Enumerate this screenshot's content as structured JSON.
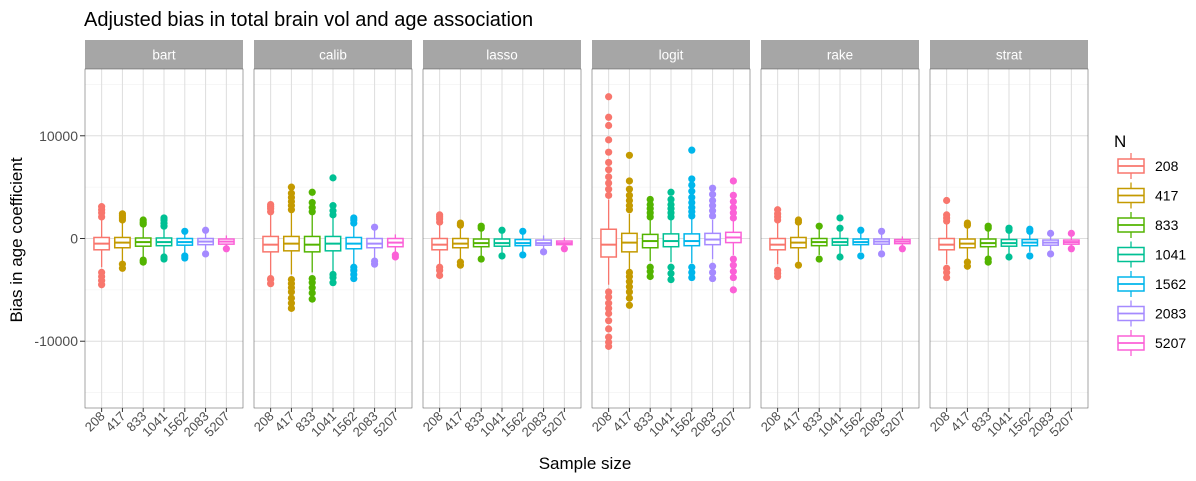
{
  "chart_data": {
    "type": "boxplot",
    "title": "Adjusted bias in total brain vol and age association",
    "xlabel": "Sample size",
    "ylabel": "Bias in age coefficient",
    "ylim": [
      -16500,
      16500
    ],
    "y_ticks": [
      10000,
      0,
      -10000
    ],
    "y_tick_labels": [
      "10000",
      "0",
      "-10000"
    ],
    "grid": true,
    "legend": {
      "title": "N",
      "position": "right",
      "entries": [
        "208",
        "417",
        "833",
        "1041",
        "1562",
        "2083",
        "5207"
      ]
    },
    "categories": [
      "208",
      "417",
      "833",
      "1041",
      "1562",
      "2083",
      "5207"
    ],
    "colors": [
      "#F8766D",
      "#C49A00",
      "#53B400",
      "#00C094",
      "#00B6EB",
      "#A58AFF",
      "#FB61D7"
    ],
    "panels": [
      {
        "name": "bart",
        "boxes": [
          {
            "q1": -1100,
            "median": -500,
            "q3": 100,
            "whisker_low": -2800,
            "whisker_high": 1800,
            "outliers": [
              -4500,
              -4100,
              -3700,
              -3300,
              2100,
              2500,
              2800,
              3100
            ]
          },
          {
            "q1": -900,
            "median": -400,
            "q3": 100,
            "whisker_low": -2200,
            "whisker_high": 1500,
            "outliers": [
              -2500,
              -2900,
              1800,
              2000,
              2200,
              2400
            ]
          },
          {
            "q1": -750,
            "median": -350,
            "q3": 50,
            "whisker_low": -1900,
            "whisker_high": 1200,
            "outliers": [
              -2100,
              -2300,
              1400,
              1600,
              1800
            ]
          },
          {
            "q1": -700,
            "median": -350,
            "q3": 50,
            "whisker_low": -1600,
            "whisker_high": 1000,
            "outliers": [
              -1800,
              -2000,
              1200,
              1500,
              1800,
              2000
            ]
          },
          {
            "q1": -650,
            "median": -350,
            "q3": 0,
            "whisker_low": -1500,
            "whisker_high": 900,
            "outliers": [
              -1700,
              -1900,
              700
            ]
          },
          {
            "q1": -600,
            "median": -300,
            "q3": 0,
            "whisker_low": -1100,
            "whisker_high": 600,
            "outliers": [
              -1500,
              800
            ]
          },
          {
            "q1": -550,
            "median": -300,
            "q3": -50,
            "whisker_low": -900,
            "whisker_high": 300,
            "outliers": [
              -1000
            ]
          }
        ]
      },
      {
        "name": "calib",
        "boxes": [
          {
            "q1": -1300,
            "median": -600,
            "q3": 200,
            "whisker_low": -3600,
            "whisker_high": 2300,
            "outliers": [
              -4400,
              -4000,
              -3900,
              2600,
              2900,
              3100,
              3300
            ]
          },
          {
            "q1": -1200,
            "median": -500,
            "q3": 200,
            "whisker_low": -3500,
            "whisker_high": 2500,
            "outliers": [
              -6800,
              -6300,
              -5800,
              -5200,
              -4800,
              -4400,
              -4000,
              2800,
              3200,
              3600,
              4000,
              4400,
              5000
            ]
          },
          {
            "q1": -1300,
            "median": -600,
            "q3": 200,
            "whisker_low": -3300,
            "whisker_high": 2300,
            "outliers": [
              -5900,
              -5300,
              -4800,
              -4300,
              -3900,
              2600,
              3000,
              3500,
              4500
            ]
          },
          {
            "q1": -1200,
            "median": -500,
            "q3": 200,
            "whisker_low": -3200,
            "whisker_high": 2000,
            "outliers": [
              -4300,
              -3800,
              -3500,
              2300,
              2700,
              3200,
              5900
            ]
          },
          {
            "q1": -1000,
            "median": -500,
            "q3": 100,
            "whisker_low": -2500,
            "whisker_high": 1300,
            "outliers": [
              -3900,
              -3500,
              -3100,
              -2800,
              1500,
              1800,
              2000
            ]
          },
          {
            "q1": -900,
            "median": -500,
            "q3": 0,
            "whisker_low": -1900,
            "whisker_high": 900,
            "outliers": [
              -2500,
              -2200,
              1100
            ]
          },
          {
            "q1": -800,
            "median": -400,
            "q3": 0,
            "whisker_low": -1300,
            "whisker_high": 400,
            "outliers": [
              -1600,
              -1800
            ]
          }
        ]
      },
      {
        "name": "lasso",
        "boxes": [
          {
            "q1": -1100,
            "median": -600,
            "q3": 0,
            "whisker_low": -2500,
            "whisker_high": 1400,
            "outliers": [
              -3600,
              -3100,
              -2800,
              1600,
              1900,
              2100,
              2300
            ]
          },
          {
            "q1": -900,
            "median": -500,
            "q3": 0,
            "whisker_low": -2100,
            "whisker_high": 1100,
            "outliers": [
              -2600,
              -2300,
              1300,
              1500
            ]
          },
          {
            "q1": -800,
            "median": -450,
            "q3": -50,
            "whisker_low": -1700,
            "whisker_high": 800,
            "outliers": [
              -2000,
              1000,
              1200
            ]
          },
          {
            "q1": -750,
            "median": -450,
            "q3": -50,
            "whisker_low": -1500,
            "whisker_high": 600,
            "outliers": [
              -1700,
              800
            ]
          },
          {
            "q1": -700,
            "median": -450,
            "q3": -100,
            "whisker_low": -1300,
            "whisker_high": 500,
            "outliers": [
              -1600,
              700
            ]
          },
          {
            "q1": -650,
            "median": -450,
            "q3": -150,
            "whisker_low": -1100,
            "whisker_high": 300,
            "outliers": [
              -1300
            ]
          },
          {
            "q1": -600,
            "median": -450,
            "q3": -250,
            "whisker_low": -900,
            "whisker_high": 100,
            "outliers": [
              -1000
            ]
          }
        ]
      },
      {
        "name": "logit",
        "boxes": [
          {
            "q1": -1800,
            "median": -600,
            "q3": 900,
            "whisker_low": -4500,
            "whisker_high": 3800,
            "outliers": [
              -10500,
              -10100,
              -9600,
              -8800,
              -8000,
              -7300,
              -6800,
              -6300,
              -5700,
              -5200,
              4200,
              4800,
              5400,
              6000,
              6700,
              7400,
              8400,
              9600,
              11000,
              11800,
              13800
            ]
          },
          {
            "q1": -1300,
            "median": -400,
            "q3": 500,
            "whisker_low": -3000,
            "whisker_high": 2400,
            "outliers": [
              -6500,
              -5800,
              -5200,
              -4700,
              -4200,
              -3700,
              -3300,
              2800,
              3200,
              3700,
              4200,
              4800,
              5600,
              8100
            ]
          },
          {
            "q1": -900,
            "median": -250,
            "q3": 400,
            "whisker_low": -2200,
            "whisker_high": 1800,
            "outliers": [
              -3700,
              -3200,
              -2800,
              2100,
              2500,
              2900,
              3300,
              3800
            ]
          },
          {
            "q1": -800,
            "median": -250,
            "q3": 450,
            "whisker_low": -2300,
            "whisker_high": 1800,
            "outliers": [
              -4000,
              -3400,
              -2800,
              2100,
              2500,
              2900,
              3300,
              3800,
              4500
            ]
          },
          {
            "q1": -700,
            "median": -250,
            "q3": 450,
            "whisker_low": -2400,
            "whisker_high": 1900,
            "outliers": [
              -3800,
              -3300,
              -2800,
              2200,
              2600,
              3000,
              3500,
              4000,
              4600,
              5200,
              5800,
              8600
            ]
          },
          {
            "q1": -600,
            "median": -100,
            "q3": 500,
            "whisker_low": -2000,
            "whisker_high": 1800,
            "outliers": [
              -3900,
              -3300,
              -2700,
              2200,
              2700,
              3200,
              3700,
              4300,
              4900
            ]
          },
          {
            "q1": -400,
            "median": 100,
            "q3": 600,
            "whisker_low": -1600,
            "whisker_high": 1700,
            "outliers": [
              -5000,
              -3800,
              -3200,
              -2600,
              -2000,
              2000,
              2500,
              3000,
              3600,
              4200,
              5600
            ]
          }
        ]
      },
      {
        "name": "rake",
        "boxes": [
          {
            "q1": -1100,
            "median": -600,
            "q3": 0,
            "whisker_low": -2500,
            "whisker_high": 1500,
            "outliers": [
              -3700,
              -3400,
              -3100,
              1800,
              2100,
              2400,
              2800
            ]
          },
          {
            "q1": -900,
            "median": -400,
            "q3": 100,
            "whisker_low": -2400,
            "whisker_high": 1400,
            "outliers": [
              -2600,
              1600,
              1800
            ]
          },
          {
            "q1": -700,
            "median": -350,
            "q3": 0,
            "whisker_low": -1600,
            "whisker_high": 1000,
            "outliers": [
              -2000,
              1200
            ]
          },
          {
            "q1": -650,
            "median": -350,
            "q3": 0,
            "whisker_low": -1500,
            "whisker_high": 800,
            "outliers": [
              -1800,
              1000,
              2000
            ]
          },
          {
            "q1": -600,
            "median": -350,
            "q3": -50,
            "whisker_low": -1300,
            "whisker_high": 600,
            "outliers": [
              -1700,
              800
            ]
          },
          {
            "q1": -550,
            "median": -300,
            "q3": -50,
            "whisker_low": -1100,
            "whisker_high": 400,
            "outliers": [
              -1500,
              700
            ]
          },
          {
            "q1": -500,
            "median": -300,
            "q3": -100,
            "whisker_low": -800,
            "whisker_high": 200,
            "outliers": [
              -1000
            ]
          }
        ]
      },
      {
        "name": "strat",
        "boxes": [
          {
            "q1": -1100,
            "median": -600,
            "q3": 0,
            "whisker_low": -2500,
            "whisker_high": 1400,
            "outliers": [
              -3800,
              -3300,
              -2900,
              1700,
              2000,
              2300,
              3700
            ]
          },
          {
            "q1": -900,
            "median": -500,
            "q3": -50,
            "whisker_low": -2100,
            "whisker_high": 1000,
            "outliers": [
              -2700,
              -2300,
              1300,
              1500
            ]
          },
          {
            "q1": -800,
            "median": -450,
            "q3": -50,
            "whisker_low": -1800,
            "whisker_high": 800,
            "outliers": [
              -2300,
              -2000,
              1000,
              1200
            ]
          },
          {
            "q1": -750,
            "median": -450,
            "q3": -100,
            "whisker_low": -1500,
            "whisker_high": 600,
            "outliers": [
              -1800,
              800,
              1000
            ]
          },
          {
            "q1": -700,
            "median": -400,
            "q3": -100,
            "whisker_low": -1300,
            "whisker_high": 500,
            "outliers": [
              -1700,
              700,
              900
            ]
          },
          {
            "q1": -650,
            "median": -400,
            "q3": -150,
            "whisker_low": -1100,
            "whisker_high": 300,
            "outliers": [
              -1500,
              500
            ]
          },
          {
            "q1": -550,
            "median": -350,
            "q3": -150,
            "whisker_low": -900,
            "whisker_high": 200,
            "outliers": [
              -1000,
              500
            ]
          }
        ]
      }
    ]
  }
}
